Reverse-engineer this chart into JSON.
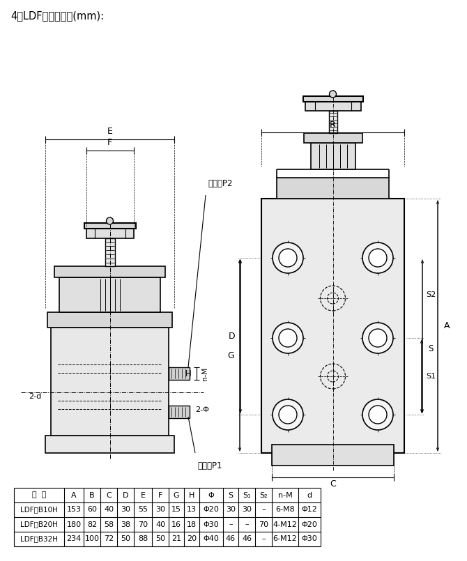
{
  "title": "4、LDF型板式连接(mm):",
  "bg_color": "#ffffff",
  "table_headers": [
    "型  号",
    "A",
    "B",
    "C",
    "D",
    "E",
    "F",
    "G",
    "H",
    "Φ",
    "S",
    "S₁",
    "S₂",
    "n-M",
    "d"
  ],
  "table_rows": [
    [
      "LDF－B10H",
      "153",
      "60",
      "40",
      "30",
      "55",
      "30",
      "15",
      "13",
      "Φ20",
      "30",
      "30",
      "–",
      "6-M8",
      "Φ12"
    ],
    [
      "LDF－B20H",
      "180",
      "82",
      "58",
      "38",
      "70",
      "40",
      "16",
      "18",
      "Φ30",
      "–",
      "–",
      "70",
      "4-M12",
      "Φ20"
    ],
    [
      "LDF－B32H",
      "234",
      "100",
      "72",
      "50",
      "88",
      "50",
      "21",
      "20",
      "Φ40",
      "46",
      "46",
      "–",
      "6-M12",
      "Φ30"
    ]
  ],
  "label_out": "出油口P2",
  "label_in": "进油口P1",
  "text_color": "#000000",
  "line_color": "#000000"
}
